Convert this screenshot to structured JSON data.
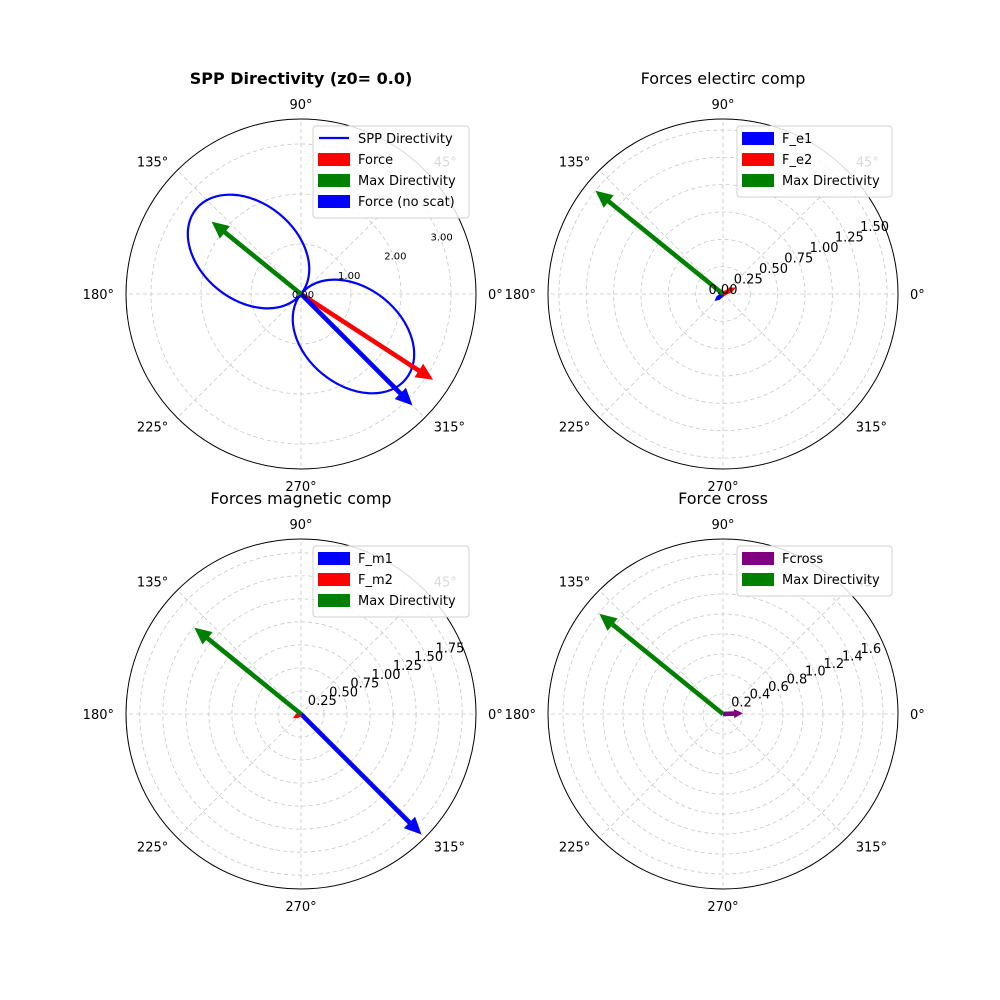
{
  "chart_data": [
    {
      "type": "polar",
      "title": "SPP Directivity (z0= 0.0)",
      "title_bold": true,
      "angle_ticks": [
        "0°",
        "45°",
        "90°",
        "135°",
        "180°",
        "225°",
        "270°",
        "315°"
      ],
      "r_ticks": [
        0.0,
        1.0,
        2.0,
        3.0
      ],
      "r_tick_labels": [
        "0.00",
        "1.00",
        "2.00",
        "3.00"
      ],
      "rlim": [
        0,
        3.5
      ],
      "grid": true,
      "legend_position": "top-right",
      "series": [
        {
          "name": "SPP Directivity",
          "kind": "line",
          "color": "#0000ff",
          "lobes": [
            {
              "direction_deg": 141,
              "peak": 2.7,
              "width_ratio": 0.72
            },
            {
              "direction_deg": 321,
              "peak": 2.7,
              "width_ratio": 0.72
            }
          ]
        },
        {
          "name": "Force",
          "kind": "arrow",
          "color": "#ff0000",
          "angle_deg": 327,
          "r": 3.15
        },
        {
          "name": "Max Directivity",
          "kind": "arrow",
          "color": "#008000",
          "angle_deg": 141,
          "r": 2.3
        },
        {
          "name": "Force (no scat)",
          "kind": "arrow",
          "color": "#0000ff",
          "angle_deg": 315,
          "r": 3.15
        }
      ]
    },
    {
      "type": "polar",
      "title": "Forces electirc comp",
      "title_bold": false,
      "angle_ticks": [
        "0°",
        "45°",
        "90°",
        "135°",
        "180°",
        "225°",
        "270°",
        "315°"
      ],
      "r_ticks": [
        0.0,
        0.25,
        0.5,
        0.75,
        1.0,
        1.25,
        1.5
      ],
      "r_tick_labels": [
        "0.00",
        "0.25",
        "0.50",
        "0.75",
        "1.00",
        "1.25",
        "1.50"
      ],
      "rlim": [
        0,
        1.6
      ],
      "grid": true,
      "legend_position": "top-right",
      "series": [
        {
          "name": "F_e1",
          "kind": "arrow",
          "color": "#0000ff",
          "angle_deg": 219,
          "r": 0.1
        },
        {
          "name": "F_e2",
          "kind": "arrow",
          "color": "#ff0000",
          "angle_deg": 27,
          "r": 0.13
        },
        {
          "name": "Max Directivity",
          "kind": "arrow",
          "color": "#008000",
          "angle_deg": 141,
          "r": 1.5
        }
      ]
    },
    {
      "type": "polar",
      "title": "Forces magnetic comp",
      "title_bold": false,
      "angle_ticks": [
        "0°",
        "45°",
        "90°",
        "135°",
        "180°",
        "225°",
        "270°",
        "315°"
      ],
      "r_ticks": [
        0.0,
        0.25,
        0.5,
        0.75,
        1.0,
        1.25,
        1.5,
        1.75
      ],
      "r_tick_labels": [
        "",
        "0.25",
        "0.50",
        "0.75",
        "1.00",
        "1.25",
        "1.50",
        "1.75"
      ],
      "rlim": [
        0,
        1.9
      ],
      "grid": true,
      "legend_position": "top-right",
      "series": [
        {
          "name": "F_m1",
          "kind": "arrow",
          "color": "#0000ff",
          "angle_deg": 315,
          "r": 1.85
        },
        {
          "name": "F_m2",
          "kind": "arrow",
          "color": "#ff0000",
          "angle_deg": 207,
          "r": 0.1
        },
        {
          "name": "Max Directivity",
          "kind": "arrow",
          "color": "#008000",
          "angle_deg": 141,
          "r": 1.49
        }
      ]
    },
    {
      "type": "polar",
      "title": "Force cross",
      "title_bold": false,
      "angle_ticks": [
        "0°",
        "45°",
        "90°",
        "135°",
        "180°",
        "225°",
        "270°",
        "315°"
      ],
      "r_ticks": [
        0.0,
        0.2,
        0.4,
        0.6,
        0.8,
        1.0,
        1.2,
        1.4,
        1.6
      ],
      "r_tick_labels": [
        "",
        "0.2",
        "0.4",
        "0.6",
        "0.8",
        "1.0",
        "1.2",
        "1.4",
        "1.6"
      ],
      "rlim": [
        0,
        1.75
      ],
      "grid": true,
      "legend_position": "top-right",
      "series": [
        {
          "name": "Fcross",
          "kind": "arrow",
          "color": "#800080",
          "angle_deg": 2,
          "r": 0.2
        },
        {
          "name": "Max Directivity",
          "kind": "arrow",
          "color": "#008000",
          "angle_deg": 141,
          "r": 1.59
        }
      ]
    }
  ]
}
